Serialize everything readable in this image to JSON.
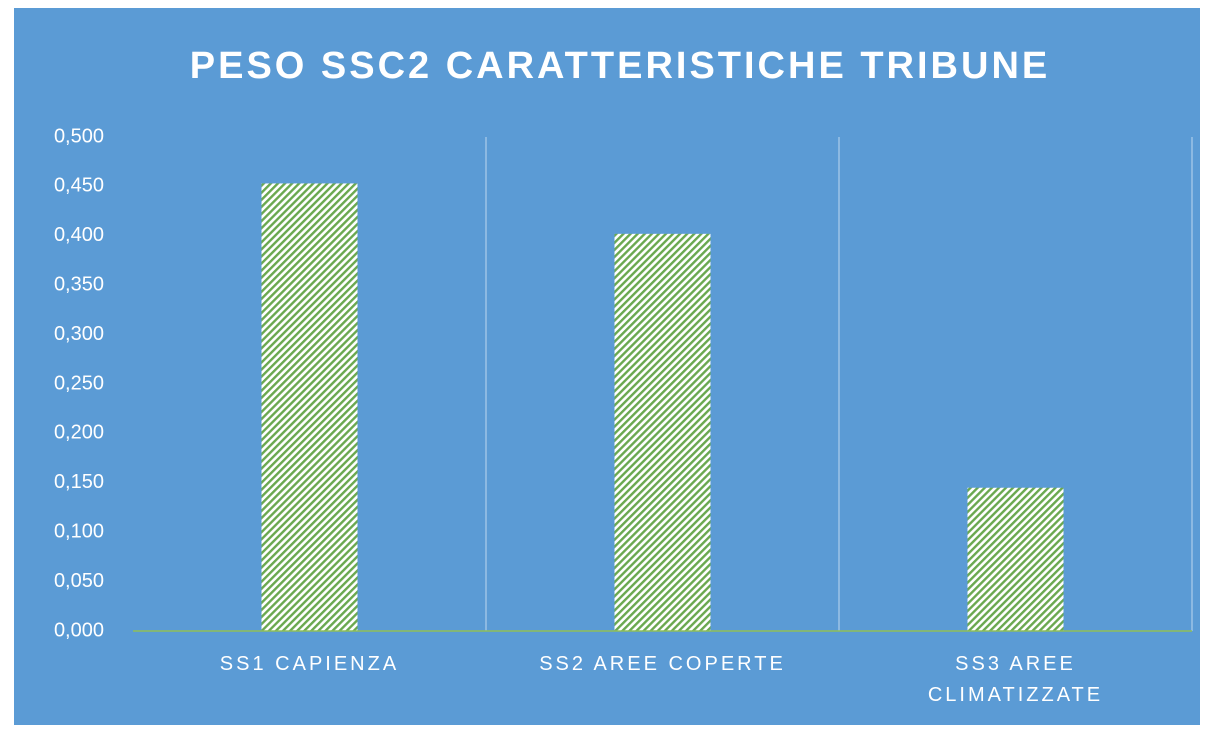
{
  "chart_data": {
    "type": "bar",
    "title": "PESO SSC2  CARATTERISTICHE  TRIBUNE",
    "categories": [
      "SS1 CAPIENZA",
      "SS2 AREE COPERTE",
      "SS3 AREE CLIMATIZZATE"
    ],
    "values": [
      0.453,
      0.402,
      0.145
    ],
    "color": "#6aa84f",
    "ylim": [
      0,
      0.5
    ],
    "yticks": [
      {
        "value": 0,
        "label": "0,000"
      },
      {
        "value": 0.05,
        "label": "0,050"
      },
      {
        "value": 0.1,
        "label": "0,100"
      },
      {
        "value": 0.15,
        "label": "0,150"
      },
      {
        "value": 0.2,
        "label": "0,200"
      },
      {
        "value": 0.25,
        "label": "0,250"
      },
      {
        "value": 0.3,
        "label": "0,300"
      },
      {
        "value": 0.35,
        "label": "0,350"
      },
      {
        "value": 0.4,
        "label": "0,400"
      },
      {
        "value": 0.45,
        "label": "0,450"
      },
      {
        "value": 0.5,
        "label": "0,500"
      }
    ]
  }
}
